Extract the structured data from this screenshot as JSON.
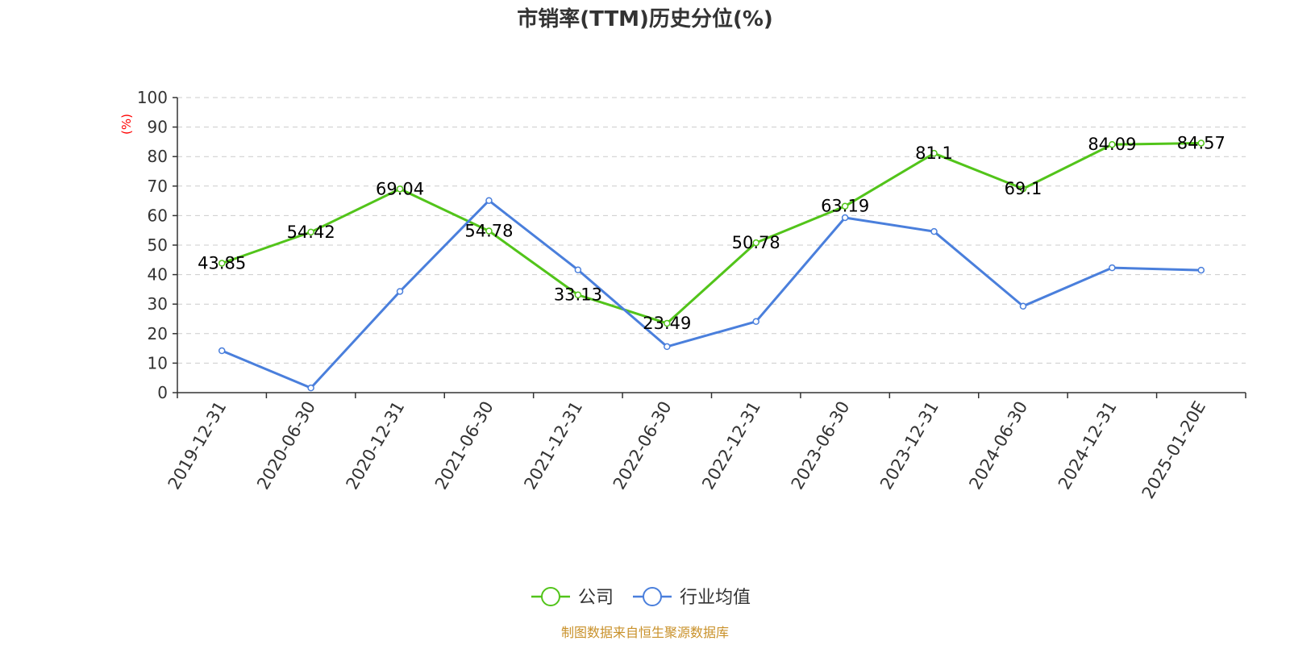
{
  "chart_data": {
    "type": "line",
    "title": "市销率(TTM)历史分位(%)",
    "ylabel": "(%)",
    "xlabel": "",
    "ylim": [
      0,
      100
    ],
    "yticks": [
      0,
      10,
      20,
      30,
      40,
      50,
      60,
      70,
      80,
      90,
      100
    ],
    "grid": true,
    "legend_position": "bottom-center",
    "categories": [
      "2019-12-31",
      "2020-06-30",
      "2020-12-31",
      "2021-06-30",
      "2021-12-31",
      "2022-06-30",
      "2022-12-31",
      "2023-06-30",
      "2023-12-31",
      "2024-06-30",
      "2024-12-31",
      "2025-01-20E"
    ],
    "series": [
      {
        "name": "公司",
        "color": "#52c41a",
        "show_labels": true,
        "values": [
          43.85,
          54.42,
          69.04,
          54.78,
          33.13,
          23.49,
          50.78,
          63.19,
          81.1,
          69.1,
          84.09,
          84.57
        ]
      },
      {
        "name": "行业均值",
        "color": "#4a7fdc",
        "show_labels": false,
        "values": [
          14.2,
          1.6,
          34.3,
          65.1,
          41.6,
          15.6,
          24.1,
          59.3,
          54.6,
          29.3,
          42.3,
          41.5
        ]
      }
    ]
  },
  "colors": {
    "ylabel": "#ff0000",
    "source": "#c9912a",
    "axis": "#333333",
    "grid": "#cccccc"
  },
  "source_note": "制图数据来自恒生聚源数据库"
}
